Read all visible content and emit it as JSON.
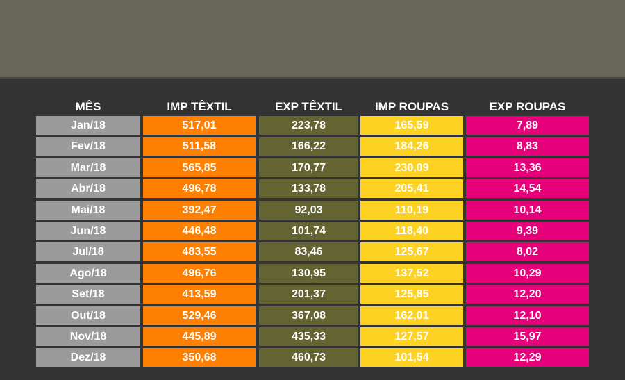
{
  "colors": {
    "background": "#333333",
    "top_band": "#676858",
    "month": "#9b9b9b",
    "imp_textil": "#ff8000",
    "exp_textil": "#646433",
    "imp_roupas": "#fdd223",
    "exp_roupas": "#e6007a"
  },
  "chart_data": {
    "type": "table",
    "columns": [
      "MÊS",
      "IMP TÊXTIL",
      "EXP TÊXTIL",
      "IMP ROUPAS",
      "EXP ROUPAS"
    ],
    "rows": [
      [
        "Jan/18",
        "517,01",
        "223,78",
        "165,59",
        "7,89"
      ],
      [
        "Fev/18",
        "511,58",
        "166,22",
        "184,26",
        "8,83"
      ],
      [
        "Mar/18",
        "565,85",
        "170,77",
        "230,09",
        "13,36"
      ],
      [
        "Abr/18",
        "496,78",
        "133,78",
        "205,41",
        "14,54"
      ],
      [
        "Mai/18",
        "392,47",
        "92,03",
        "110,19",
        "10,14"
      ],
      [
        "Jun/18",
        "446,48",
        "101,74",
        "118,40",
        "9,39"
      ],
      [
        "Jul/18",
        "483,55",
        "83,46",
        "125,67",
        "8,02"
      ],
      [
        "Ago/18",
        "496,76",
        "130,95",
        "137,52",
        "10,29"
      ],
      [
        "Set/18",
        "413,59",
        "201,37",
        "125,85",
        "12,20"
      ],
      [
        "Out/18",
        "529,46",
        "367,08",
        "162,01",
        "12,10"
      ],
      [
        "Nov/18",
        "445,89",
        "435,33",
        "127,57",
        "15,97"
      ],
      [
        "Dez/18",
        "350,68",
        "460,73",
        "101,54",
        "12,29"
      ]
    ]
  }
}
